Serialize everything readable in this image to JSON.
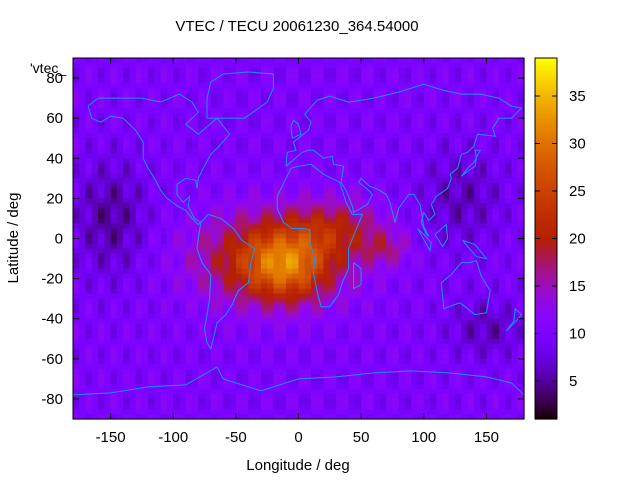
{
  "chart_data": {
    "type": "heatmap",
    "title": "VTEC / TECU 20061230_364.54000",
    "xlabel": "Longitude / deg",
    "ylabel": "Latitude / deg",
    "xlim": [
      -180,
      180
    ],
    "ylim": [
      -90,
      90
    ],
    "xticks": [
      -150,
      -100,
      -50,
      0,
      50,
      100,
      150
    ],
    "yticks": [
      -80,
      -60,
      -40,
      -20,
      0,
      20,
      40,
      60,
      80
    ],
    "colorbar": {
      "min": 1,
      "max": 39,
      "ticks": [
        5,
        10,
        15,
        20,
        25,
        30,
        35
      ]
    },
    "legend_label": "'vtec_",
    "anomaly_center": {
      "lon": -10,
      "lat": -15,
      "value": 34
    },
    "background_value": 10,
    "coastline_color": "#1e90ff"
  },
  "colors": {
    "background": "#ffffff",
    "frame": "#000000",
    "coastline": "#1e90ff"
  }
}
